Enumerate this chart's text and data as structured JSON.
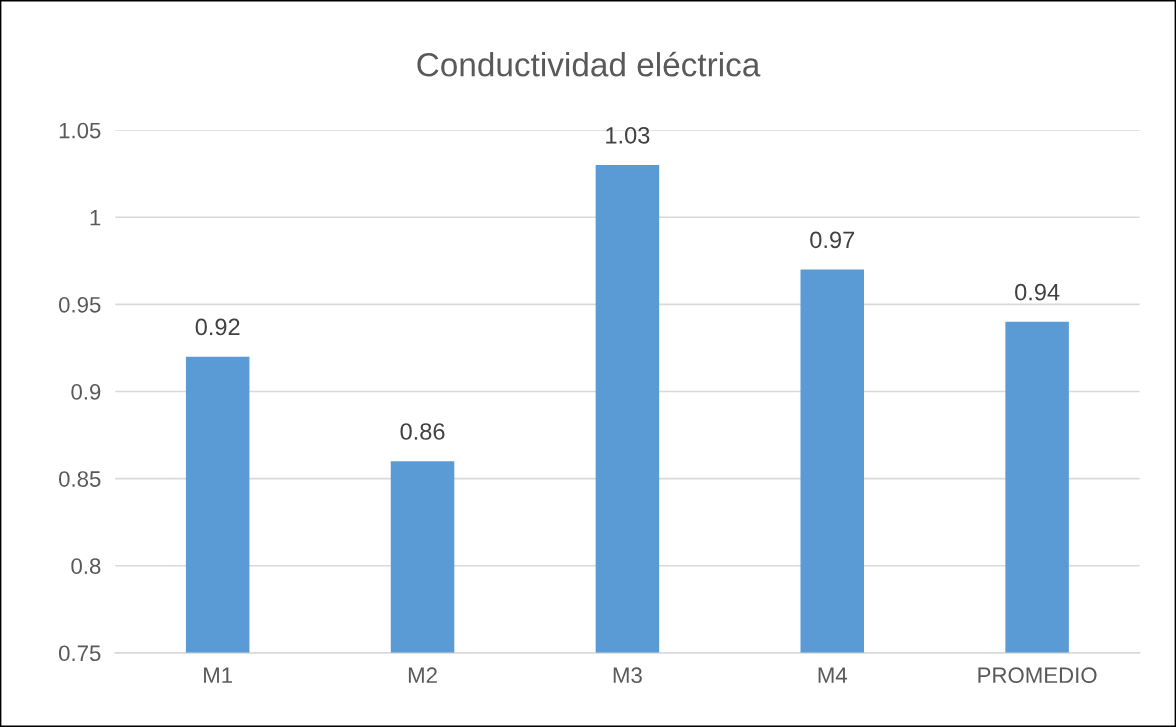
{
  "chart_data": {
    "type": "bar",
    "title": "Conductividad eléctrica",
    "categories": [
      "M1",
      "M2",
      "M3",
      "M4",
      "PROMEDIO"
    ],
    "values": [
      0.92,
      0.86,
      1.03,
      0.97,
      0.94
    ],
    "color": "#5b9bd5",
    "ylim": [
      0.75,
      1.05
    ],
    "yticks": [
      {
        "value": 0.75,
        "label": "0.75"
      },
      {
        "value": 0.8,
        "label": "0.8"
      },
      {
        "value": 0.85,
        "label": "0.85"
      },
      {
        "value": 0.9,
        "label": "0.9"
      },
      {
        "value": 0.95,
        "label": "0.95"
      },
      {
        "value": 1,
        "label": "1"
      },
      {
        "value": 1.05,
        "label": "1.05"
      }
    ],
    "grid": "y",
    "data_labels": true
  }
}
